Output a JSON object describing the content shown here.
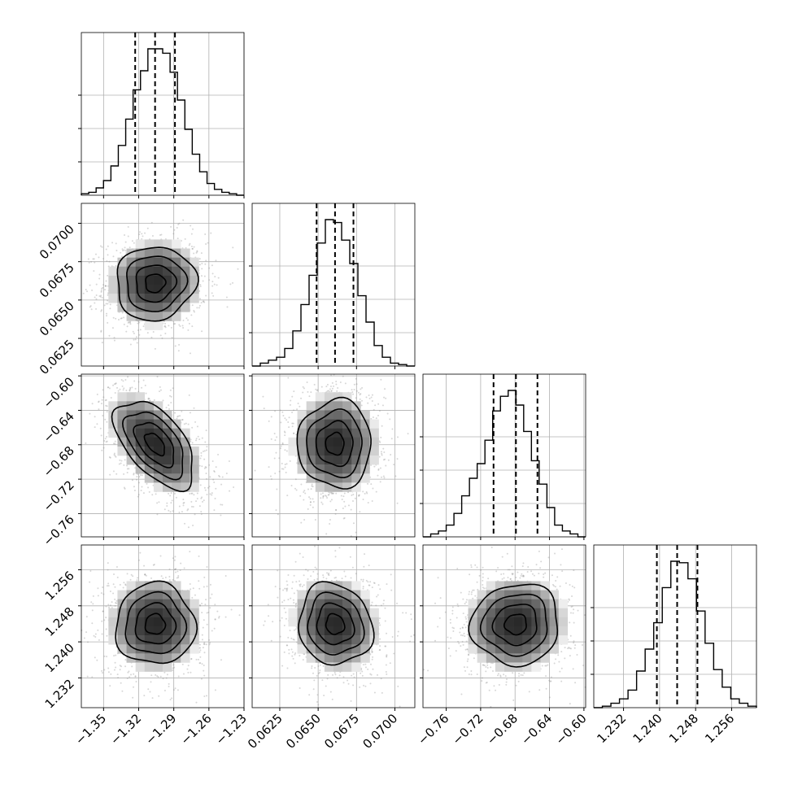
{
  "chart_data": {
    "type": "corner",
    "grid": true,
    "params": [
      {
        "ticks": [
          -1.35,
          -1.32,
          -1.29,
          -1.26,
          -1.23
        ],
        "tick_labels": [
          "−1.35",
          "−1.32",
          "−1.29",
          "−1.26",
          "−1.23"
        ],
        "range": [
          -1.369,
          -1.23
        ],
        "median": -1.306,
        "q16": -1.323,
        "q84": -1.289
      },
      {
        "ticks": [
          0.0625,
          0.065,
          0.0675,
          0.07
        ],
        "tick_labels": [
          "0.0625",
          "0.0650",
          "0.0675",
          "0.0700"
        ],
        "range": [
          0.0607,
          0.0713
        ],
        "median": 0.0661,
        "q16": 0.0649,
        "q84": 0.0673
      },
      {
        "ticks": [
          -0.76,
          -0.72,
          -0.68,
          -0.64,
          -0.6
        ],
        "tick_labels": [
          "−0.76",
          "−0.72",
          "−0.68",
          "−0.64",
          "−0.60"
        ],
        "range": [
          -0.787,
          -0.598
        ],
        "median": -0.679,
        "q16": -0.705,
        "q84": -0.654
      },
      {
        "ticks": [
          1.232,
          1.24,
          1.248,
          1.256
        ],
        "tick_labels": [
          "1.232",
          "1.240",
          "1.248",
          "1.256"
        ],
        "range": [
          1.2254,
          1.2615
        ],
        "median": 1.2439,
        "q16": 1.2394,
        "q84": 1.2484
      }
    ],
    "diagonal_histograms": [
      {
        "counts": [
          1,
          2,
          5,
          10,
          20,
          34,
          52,
          72,
          85,
          100,
          100,
          97,
          84,
          65,
          45,
          28,
          16,
          8,
          4,
          2,
          1,
          0
        ]
      },
      {
        "counts": [
          0,
          2,
          4,
          6,
          12,
          24,
          42,
          62,
          84,
          100,
          98,
          86,
          70,
          48,
          30,
          14,
          6,
          2,
          1,
          0
        ]
      },
      {
        "counts": [
          0,
          2,
          4,
          8,
          16,
          28,
          40,
          50,
          66,
          86,
          96,
          100,
          90,
          72,
          52,
          36,
          20,
          8,
          4,
          2,
          0
        ]
      },
      {
        "counts": [
          0,
          1,
          3,
          6,
          12,
          25,
          40,
          58,
          82,
          100,
          99,
          88,
          66,
          44,
          26,
          14,
          6,
          3,
          1
        ]
      }
    ],
    "correlations": [
      [
        1,
        0.05,
        -0.55,
        0
      ],
      [
        0.05,
        1,
        0,
        -0.1
      ],
      [
        -0.55,
        0,
        1,
        0.05
      ],
      [
        0,
        -0.1,
        0.05,
        1
      ]
    ],
    "colors": {
      "line": "#000000",
      "points": "#8c8c8c",
      "grid": "#b0b0b0",
      "background": "#ffffff"
    }
  }
}
